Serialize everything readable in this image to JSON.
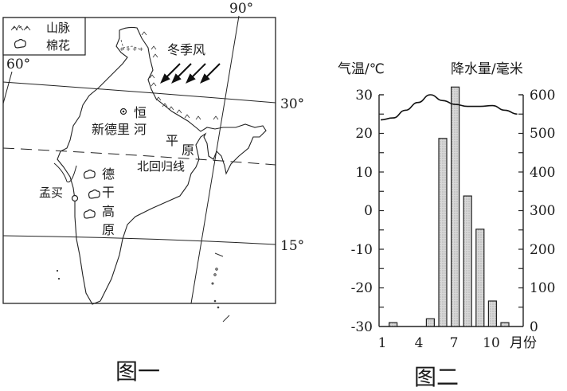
{
  "figure1": {
    "caption": "图一",
    "legend": [
      {
        "icon": "mountain-icon",
        "label": "山脉"
      },
      {
        "icon": "cotton-icon",
        "label": "棉花"
      }
    ],
    "longitudes": [
      "60°",
      "90°"
    ],
    "latitudes": [
      "30°",
      "15°"
    ],
    "labels": {
      "winter_monsoon": "冬季风",
      "new_delhi": "新德里",
      "ganges_1": "恒",
      "ganges_2": "河",
      "plain_1": "平",
      "plain_2": "原",
      "tropic": "北回归线",
      "mumbai": "孟买",
      "deccan_1": "德",
      "deccan_2": "干",
      "deccan_3": "高",
      "deccan_4": "原"
    }
  },
  "figure2": {
    "caption": "图二",
    "left_axis_title": "气温/℃",
    "right_axis_title": "降水量/毫米",
    "x_axis_unit": "月份",
    "left_ticks": [
      "30",
      "20",
      "10",
      "0",
      "-10",
      "-20",
      "-30"
    ],
    "right_ticks": [
      "600",
      "500",
      "400",
      "300",
      "200",
      "100",
      "0"
    ],
    "x_ticks": [
      "1",
      "4",
      "7",
      "10"
    ]
  },
  "chart_data": {
    "type": "bar",
    "title": "图二",
    "xlabel": "月份",
    "ylabel": "气温/℃",
    "y2label": "降水量/毫米",
    "categories": [
      "1",
      "2",
      "3",
      "4",
      "5",
      "6",
      "7",
      "8",
      "9",
      "10",
      "11",
      "12"
    ],
    "series": [
      {
        "name": "降水量/毫米",
        "type": "bar",
        "axis": "right",
        "values": [
          0,
          10,
          0,
          0,
          20,
          487,
          620,
          338,
          252,
          66,
          10,
          0
        ]
      },
      {
        "name": "气温/℃",
        "type": "line",
        "axis": "left",
        "values": [
          23.5,
          24,
          26,
          28,
          30,
          28.5,
          27.5,
          27,
          27,
          27.2,
          26,
          25
        ]
      }
    ],
    "ylim": [
      -30,
      30
    ],
    "y2lim": [
      0,
      600
    ],
    "grid": false
  }
}
